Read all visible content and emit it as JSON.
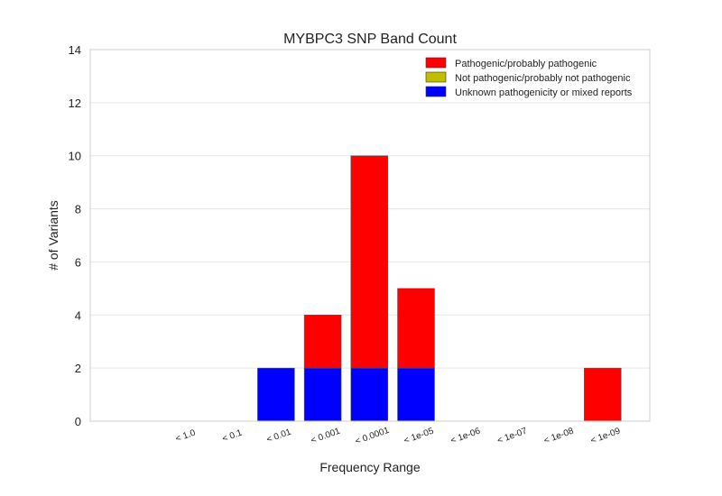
{
  "chart_data": {
    "type": "bar",
    "stacked": true,
    "title": "MYBPC3 SNP Band Count",
    "xlabel": "Frequency Range",
    "ylabel": "# of Variants",
    "ylim": [
      0,
      14
    ],
    "yticks": [
      0,
      2,
      4,
      6,
      8,
      10,
      12,
      14
    ],
    "grid": "horizontal",
    "legend_position": "top-right",
    "categories": [
      "< 1.0",
      "< 0.1",
      "< 0.01",
      "< 0.001",
      "< 0.0001",
      "< 1e-05",
      "< 1e-06",
      "< 1e-07",
      "< 1e-08",
      "< 1e-09"
    ],
    "series": [
      {
        "name": "Unknown pathogenicity or mixed reports",
        "color": "#0000ff",
        "values": [
          0,
          0,
          2,
          2,
          2,
          2,
          0,
          0,
          0,
          0
        ]
      },
      {
        "name": "Not pathogenic/probably not pathogenic",
        "color": "#bfbf00",
        "values": [
          0,
          0,
          0,
          0,
          0,
          0,
          0,
          0,
          0,
          0
        ]
      },
      {
        "name": "Pathogenic/probably pathogenic",
        "color": "#ff0000",
        "values": [
          0,
          0,
          0,
          2,
          8,
          3,
          0,
          0,
          0,
          2
        ]
      }
    ],
    "legend_order": [
      "Pathogenic/probably pathogenic",
      "Not pathogenic/probably not pathogenic",
      "Unknown pathogenicity or mixed reports"
    ]
  }
}
